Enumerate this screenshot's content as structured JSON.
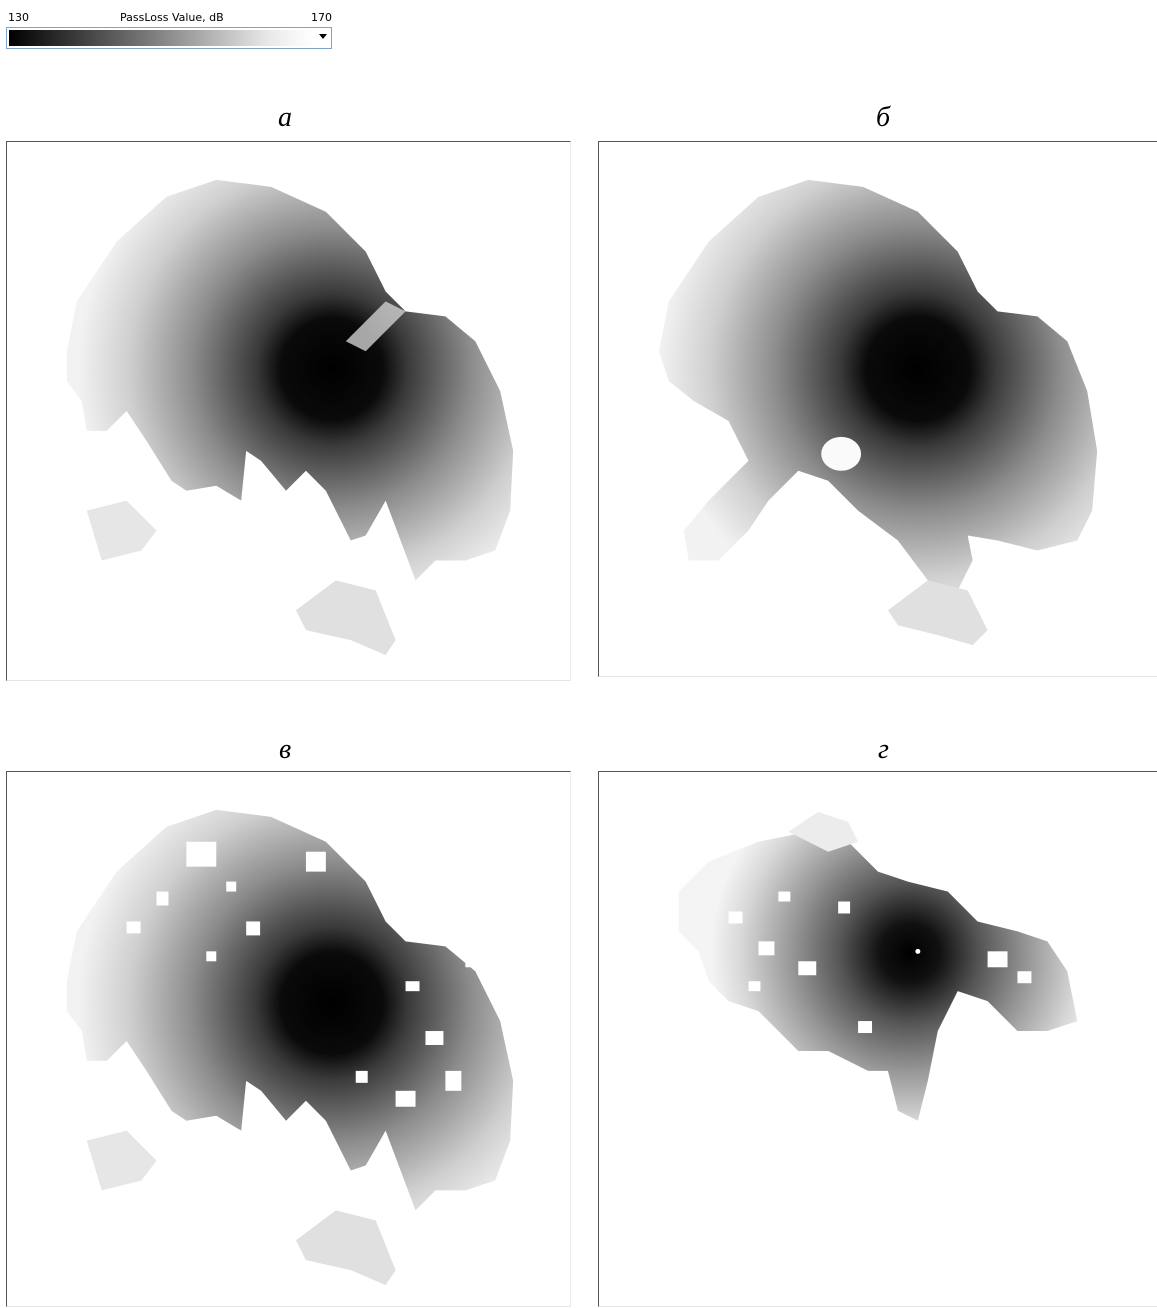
{
  "legend": {
    "min_value": "130",
    "title": "PassLoss Value, dB",
    "max_value": "170",
    "gradient_start_color": "#000000",
    "gradient_end_color": "#ffffff"
  },
  "panels": [
    {
      "label": "а"
    },
    {
      "label": "б"
    },
    {
      "label": "в"
    },
    {
      "label": "г"
    }
  ]
}
